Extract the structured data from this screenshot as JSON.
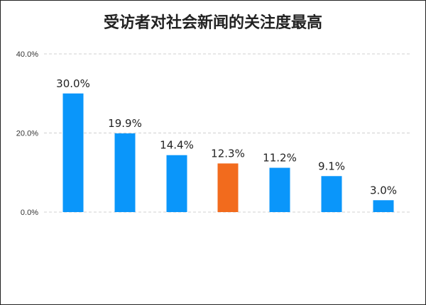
{
  "chart_data": {
    "type": "bar",
    "title": "受访者对社会新闻的关注度最高",
    "categories": [
      "",
      "",
      "",
      "",
      "",
      "",
      ""
    ],
    "values": [
      30.0,
      19.9,
      14.4,
      12.3,
      11.2,
      9.1,
      3.0
    ],
    "data_labels": [
      "30.0%",
      "19.9%",
      "14.4%",
      "12.3%",
      "11.2%",
      "9.1%",
      "3.0%"
    ],
    "colors": [
      "#0a96fa",
      "#0a96fa",
      "#0a96fa",
      "#f26b1d",
      "#0a96fa",
      "#0a96fa",
      "#0a96fa"
    ],
    "ylim": [
      0,
      40
    ],
    "yticks": [
      "0.0%",
      "20.0%",
      "40.0%"
    ],
    "ytick_values": [
      0,
      20,
      40
    ],
    "grid": true,
    "legend": "none"
  }
}
